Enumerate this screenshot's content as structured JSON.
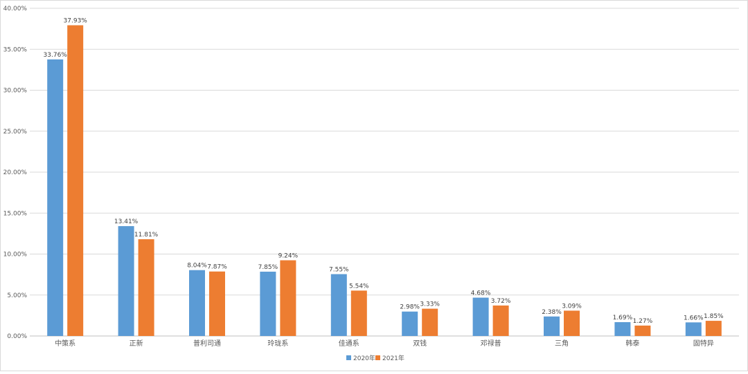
{
  "chart_data": {
    "type": "bar",
    "title": "",
    "xlabel": "",
    "ylabel": "",
    "categories": [
      "中策系",
      "正新",
      "普利司通",
      "玲珑系",
      "佳通系",
      "双钱",
      "邓禄普",
      "三角",
      "韩泰",
      "固特异"
    ],
    "series": [
      {
        "name": "2020年",
        "color": "#5b9bd5",
        "values": [
          33.76,
          13.41,
          8.04,
          7.85,
          7.55,
          2.98,
          4.68,
          2.38,
          1.69,
          1.66
        ],
        "labels": [
          "33.76%",
          "13.41%",
          "8.04%",
          "7.85%",
          "7.55%",
          "2.98%",
          "4.68%",
          "2.38%",
          "1.69%",
          "1.66%"
        ]
      },
      {
        "name": "2021年",
        "color": "#ed7d31",
        "values": [
          37.93,
          11.81,
          7.87,
          9.24,
          5.54,
          3.33,
          3.72,
          3.09,
          1.27,
          1.85
        ],
        "labels": [
          "37.93%",
          "11.81%",
          "7.87%",
          "9.24%",
          "5.54%",
          "3.33%",
          "3.72%",
          "3.09%",
          "1.27%",
          "1.85%"
        ]
      }
    ],
    "ylim": [
      0,
      40
    ],
    "yticks": [
      0,
      5,
      10,
      15,
      20,
      25,
      30,
      35,
      40
    ],
    "ytick_labels": [
      "0.00%",
      "5.00%",
      "10.00%",
      "15.00%",
      "20.00%",
      "25.00%",
      "30.00%",
      "35.00%",
      "40.00%"
    ],
    "grid": true,
    "legend_position": "bottom"
  }
}
